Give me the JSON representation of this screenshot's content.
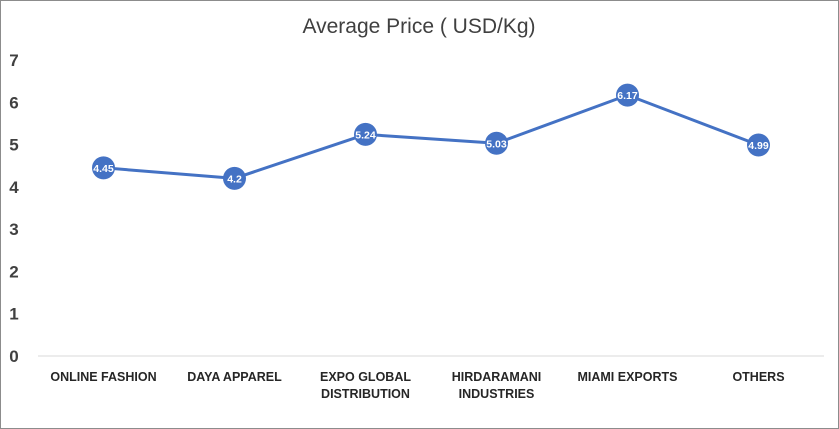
{
  "chart_data": {
    "type": "line",
    "title": "Average Price ( USD/Kg)",
    "categories": [
      [
        "ONLINE FASHION"
      ],
      [
        "DAYA APPAREL"
      ],
      [
        "EXPO GLOBAL",
        "DISTRIBUTION"
      ],
      [
        "HIRDARAMANI",
        "INDUSTRIES"
      ],
      [
        "MIAMI EXPORTS"
      ],
      [
        "OTHERS"
      ]
    ],
    "series": [
      {
        "values": [
          4.45,
          4.2,
          5.24,
          5.03,
          6.17,
          4.99
        ]
      }
    ],
    "data_labels": [
      "4.45",
      "4.2",
      "5.24",
      "5.03",
      "6.17",
      "4.99"
    ],
    "yticks": [
      "0",
      "1",
      "2",
      "3",
      "4",
      "5",
      "6",
      "7"
    ],
    "ylim": [
      0,
      7
    ],
    "grid": false,
    "colors": {
      "line": "#4472C4",
      "axis": "#d9d9d9",
      "label_text": "#ffffff"
    }
  }
}
